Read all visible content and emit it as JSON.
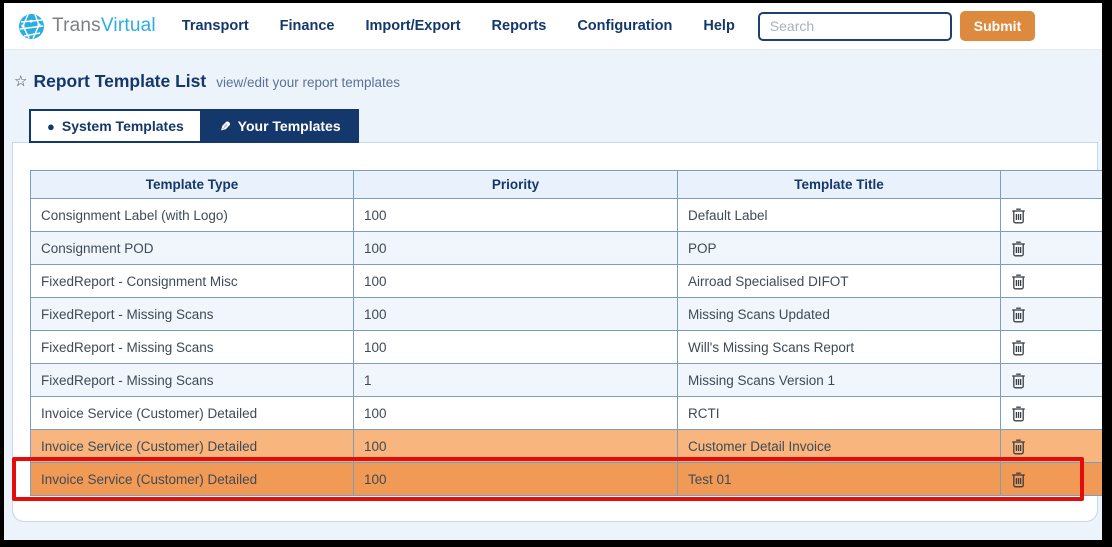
{
  "brand": {
    "name_gray": "Trans",
    "name_cyan": "Virtual"
  },
  "nav": {
    "items": [
      {
        "label": "Transport"
      },
      {
        "label": "Finance"
      },
      {
        "label": "Import/Export"
      },
      {
        "label": "Reports"
      },
      {
        "label": "Configuration"
      },
      {
        "label": "Help"
      }
    ]
  },
  "search": {
    "placeholder": "Search",
    "submit_label": "Submit"
  },
  "page": {
    "title": "Report Template List",
    "subtitle": "view/edit your report templates"
  },
  "tabs": [
    {
      "label": "System Templates",
      "icon": "circle-icon",
      "active": false
    },
    {
      "label": "Your Templates",
      "icon": "pencil-icon",
      "active": true
    }
  ],
  "table": {
    "columns": [
      "Template Type",
      "Priority",
      "Template Title",
      ""
    ],
    "rows": [
      {
        "template_type": "Consignment Label (with Logo)",
        "priority": "100",
        "template_title": "Default Label",
        "highlight": "none"
      },
      {
        "template_type": "Consignment POD",
        "priority": "100",
        "template_title": "POP",
        "highlight": "none"
      },
      {
        "template_type": "FixedReport - Consignment Misc",
        "priority": "100",
        "template_title": "Airroad Specialised DIFOT",
        "highlight": "none"
      },
      {
        "template_type": "FixedReport - Missing Scans",
        "priority": "100",
        "template_title": "Missing Scans Updated",
        "highlight": "none"
      },
      {
        "template_type": "FixedReport - Missing Scans",
        "priority": "100",
        "template_title": "Will's Missing Scans Report",
        "highlight": "none"
      },
      {
        "template_type": "FixedReport - Missing Scans",
        "priority": "1",
        "template_title": "Missing Scans Version 1",
        "highlight": "none"
      },
      {
        "template_type": "Invoice Service (Customer) Detailed",
        "priority": "100",
        "template_title": "RCTI",
        "highlight": "none"
      },
      {
        "template_type": "Invoice Service (Customer) Detailed",
        "priority": "100",
        "template_title": "Customer Detail Invoice",
        "highlight": "orange-light"
      },
      {
        "template_type": "Invoice Service (Customer) Detailed",
        "priority": "100",
        "template_title": "Test 01",
        "highlight": "orange-selected"
      }
    ]
  },
  "icons": {
    "star": "☆",
    "tab_circle": "●",
    "tab_pencil": "✎",
    "trash": "trash-icon"
  },
  "colors": {
    "accent_navy": "#14386b",
    "accent_orange_button": "#dd8a3f",
    "row_orange_light": "#f9b57e",
    "row_orange_selected": "#f19a55",
    "selection_red": "#e30d0d",
    "logo_cyan": "#2aade0",
    "table_border": "#7e9cbd",
    "header_cell_bg": "#e9f2fc"
  }
}
